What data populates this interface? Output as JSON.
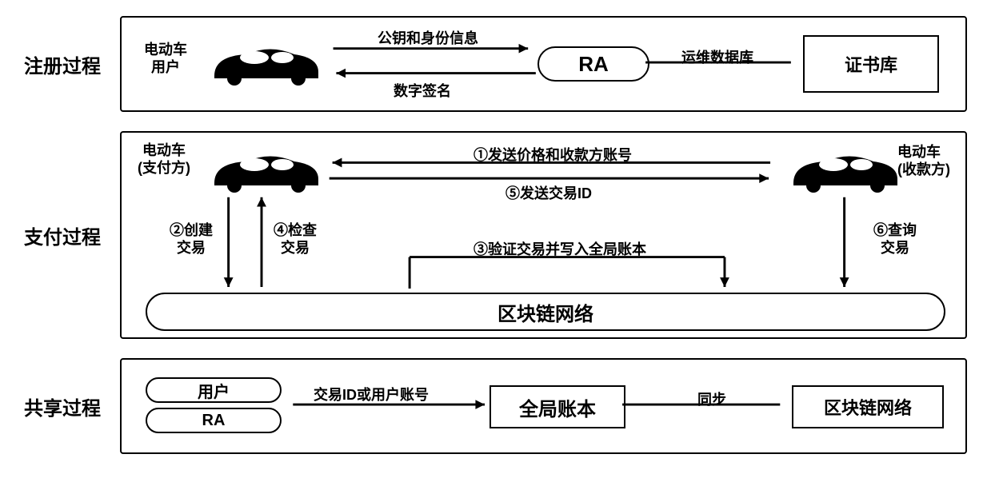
{
  "rows": {
    "register": {
      "label": "注册过程"
    },
    "payment": {
      "label": "支付过程"
    },
    "share": {
      "label": "共享过程"
    }
  },
  "register": {
    "car_label": "电动车\n用户",
    "arrow_top": "公钥和身份信息",
    "arrow_bottom": "数字签名",
    "ra": "RA",
    "link": "运维数据库",
    "cert": "证书库"
  },
  "payment": {
    "payer_label": "电动车\n(支付方)",
    "payee_label": "电动车\n(收款方)",
    "msg1": "①发送价格和收款方账号",
    "msg5": "⑤发送交易ID",
    "msg2": "②创建\n交易",
    "msg4": "④检查\n交易",
    "msg3": "③验证交易并写入全局账本",
    "msg6": "⑥查询\n交易",
    "network": "区块链网络"
  },
  "share": {
    "user": "用户",
    "ra": "RA",
    "query": "交易ID或用户账号",
    "ledger": "全局账本",
    "sync": "同步",
    "network": "区块链网络"
  },
  "colors": {
    "car_fill": "#000000",
    "stroke": "#000000",
    "bg": "#ffffff"
  }
}
